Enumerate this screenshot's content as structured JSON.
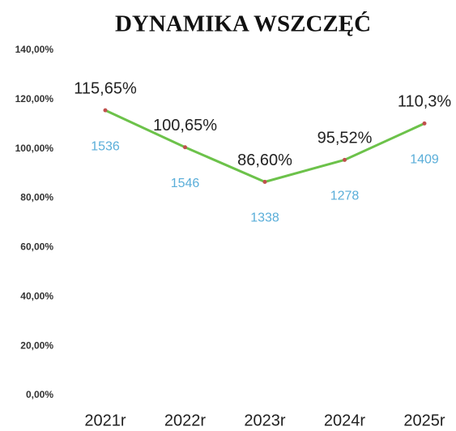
{
  "chart_data": {
    "type": "line",
    "title": "DYNAMIKA WSZCZĘĆ",
    "categories": [
      "2021r",
      "2022r",
      "2023r",
      "2024r",
      "2025r"
    ],
    "series": [
      {
        "color": "#6cc24a",
        "values": [
          115.65,
          100.65,
          86.6,
          95.52,
          110.3
        ],
        "value_labels": [
          "115,65%",
          "100,65%",
          "86,60%",
          "95,52%",
          "110,3%"
        ]
      }
    ],
    "counts": [
      1536,
      1546,
      1338,
      1278,
      1409
    ],
    "marker_color": "#c0504d",
    "count_color": "#5aaed9",
    "ylim": [
      0,
      140
    ],
    "yticks": [
      {
        "value": 0,
        "label": "0,00%"
      },
      {
        "value": 20,
        "label": "20,00%"
      },
      {
        "value": 40,
        "label": "40,00%"
      },
      {
        "value": 60,
        "label": "60,00%"
      },
      {
        "value": 80,
        "label": "80,00%"
      },
      {
        "value": 100,
        "label": "100,00%"
      },
      {
        "value": 120,
        "label": "120,00%"
      },
      {
        "value": 140,
        "label": "140,00%"
      }
    ],
    "grid": false
  }
}
